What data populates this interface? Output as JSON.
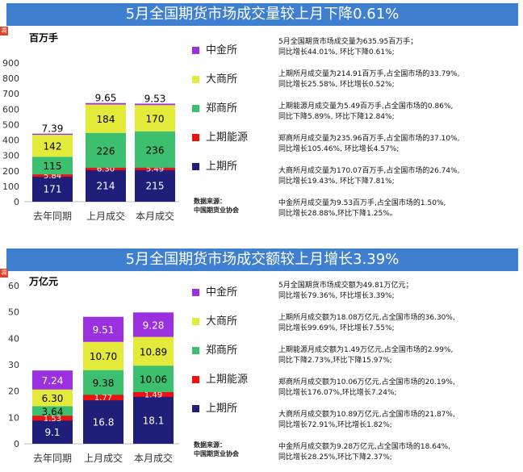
{
  "colors": {
    "banner": "#3f7fcf",
    "shqh": "#1f1f7a",
    "shny": "#ee1111",
    "zs": "#3cbf6f",
    "ds": "#e3ea3a",
    "zj": "#9b30e0"
  },
  "panels": [
    {
      "title": "5月全国期货市场成交量较上月下降0.61%",
      "tag": "凋",
      "unit": "百万手",
      "legend": [
        {
          "name": "中金所",
          "color": "#9b30e0"
        },
        {
          "name": "大商所",
          "color": "#e3ea3a"
        },
        {
          "name": "郑商所",
          "color": "#3cbf6f"
        },
        {
          "name": "上期能源",
          "color": "#ee1111"
        },
        {
          "name": "上期所",
          "color": "#1f1f7a"
        }
      ],
      "source_label": "数据来源：",
      "source_name": "中国期货业协会",
      "notes": [
        [
          "5月全国期货市场成交量为635.95百万手；",
          "同比增长44.01%, 环比下降0.61%;"
        ],
        [
          "上期所月成交量为214.91百万手,占全国市场的33.79%,",
          "同比增长25.58%, 环比增长0.52%;"
        ],
        [
          "上期能源月成交量为5.49百万手,占全国市场的0.86%,",
          "同比下降5.89%, 环比下降12.84%;"
        ],
        [
          "郑商所月成交量为235.96百万手,占全国市场的37.10%,",
          "同比增长105.46%, 环比增长4.57%;"
        ],
        [
          "大商所月成交量为170.07百万手,占全国市场的26.74%,",
          "同比增长19.43%, 环比下降7.81%;"
        ],
        [
          "中金所月成交量为9.53百万手,占全国市场的1.50%,",
          "同比增长28.88%,环比下降1.25%。"
        ]
      ]
    },
    {
      "title": "5月全国期货市场成交额较上月增长3.39%",
      "tag": "凋",
      "unit": "万亿元",
      "legend": [
        {
          "name": "中金所",
          "color": "#9b30e0"
        },
        {
          "name": "大商所",
          "color": "#e3ea3a"
        },
        {
          "name": "郑商所",
          "color": "#3cbf6f"
        },
        {
          "name": "上期能源",
          "color": "#ee1111"
        },
        {
          "name": "上期所",
          "color": "#1f1f7a"
        }
      ],
      "source_label": "数据来源：",
      "source_name": "中国期货业协会",
      "notes": [
        [
          "5月全国期货市场成交额为49.81万亿元；",
          "同比增长79.36%, 环比增长3.39%;"
        ],
        [
          "上期所月成交额为18.08万亿元,占全国市场的36.30%,",
          "同比增长99.69%, 环比增长7.55%;"
        ],
        [
          "上期能源月成交额为1.49万亿元,占全国市场的2.99%,",
          "同比下降2.73%,环比下降15.97%;"
        ],
        [
          "郑商所月成交额为10.06万亿元,占全国市场的20.19%,",
          "同比增长176.07%,环比增长7.24%;"
        ],
        [
          "大商所月成交额为10.89万亿元,占全国市场的21.87%,",
          "同比增长72.91%,环比增长1.82%;"
        ],
        [
          "中金所月成交额为9.28万亿元,占全国市场的18.64%,",
          "同比增长28.25%,环比下降2.37%;"
        ]
      ]
    }
  ],
  "chart_data": [
    {
      "type": "bar",
      "stacked": true,
      "categories": [
        "去年同期",
        "上月成交",
        "本月成交"
      ],
      "ylim": [
        0,
        900
      ],
      "yticks": [
        0,
        100,
        200,
        300,
        400,
        500,
        600,
        700,
        800,
        900
      ],
      "series": [
        {
          "name": "上期所",
          "values": [
            171,
            214,
            215
          ],
          "labels": [
            "171",
            "214",
            "215"
          ]
        },
        {
          "name": "上期能源",
          "values": [
            5.84,
            6.3,
            5.49
          ],
          "labels": [
            "5.84",
            "6.30",
            "5.49"
          ]
        },
        {
          "name": "郑商所",
          "values": [
            115,
            226,
            236
          ],
          "labels": [
            "115",
            "226",
            "236"
          ]
        },
        {
          "name": "大商所",
          "values": [
            142,
            184,
            170
          ],
          "labels": [
            "142",
            "184",
            "170"
          ]
        },
        {
          "name": "中金所",
          "values": [
            7.39,
            9.65,
            9.53
          ],
          "labels": [
            "7.39",
            "9.65",
            "9.53"
          ]
        }
      ],
      "legend_position": "right"
    },
    {
      "type": "bar",
      "stacked": true,
      "categories": [
        "去年同期",
        "上月成交",
        "本月成交"
      ],
      "ylim": [
        0,
        60
      ],
      "yticks": [
        0,
        10,
        20,
        30,
        40,
        50,
        60
      ],
      "series": [
        {
          "name": "上期所",
          "values": [
            9.1,
            16.8,
            18.1
          ],
          "labels": [
            "9.1",
            "16.8",
            "18.1"
          ]
        },
        {
          "name": "上期能源",
          "values": [
            1.53,
            1.77,
            1.49
          ],
          "labels": [
            "1.53",
            "1.77",
            "1.49"
          ]
        },
        {
          "name": "郑商所",
          "values": [
            3.64,
            9.38,
            10.06
          ],
          "labels": [
            "3.64",
            "9.38",
            "10.06"
          ]
        },
        {
          "name": "大商所",
          "values": [
            6.3,
            10.7,
            10.89
          ],
          "labels": [
            "6.30",
            "10.70",
            "10.89"
          ]
        },
        {
          "name": "中金所",
          "values": [
            7.24,
            9.51,
            9.28
          ],
          "labels": [
            "7.24",
            "9.51",
            "9.28"
          ]
        }
      ],
      "legend_position": "right"
    }
  ]
}
